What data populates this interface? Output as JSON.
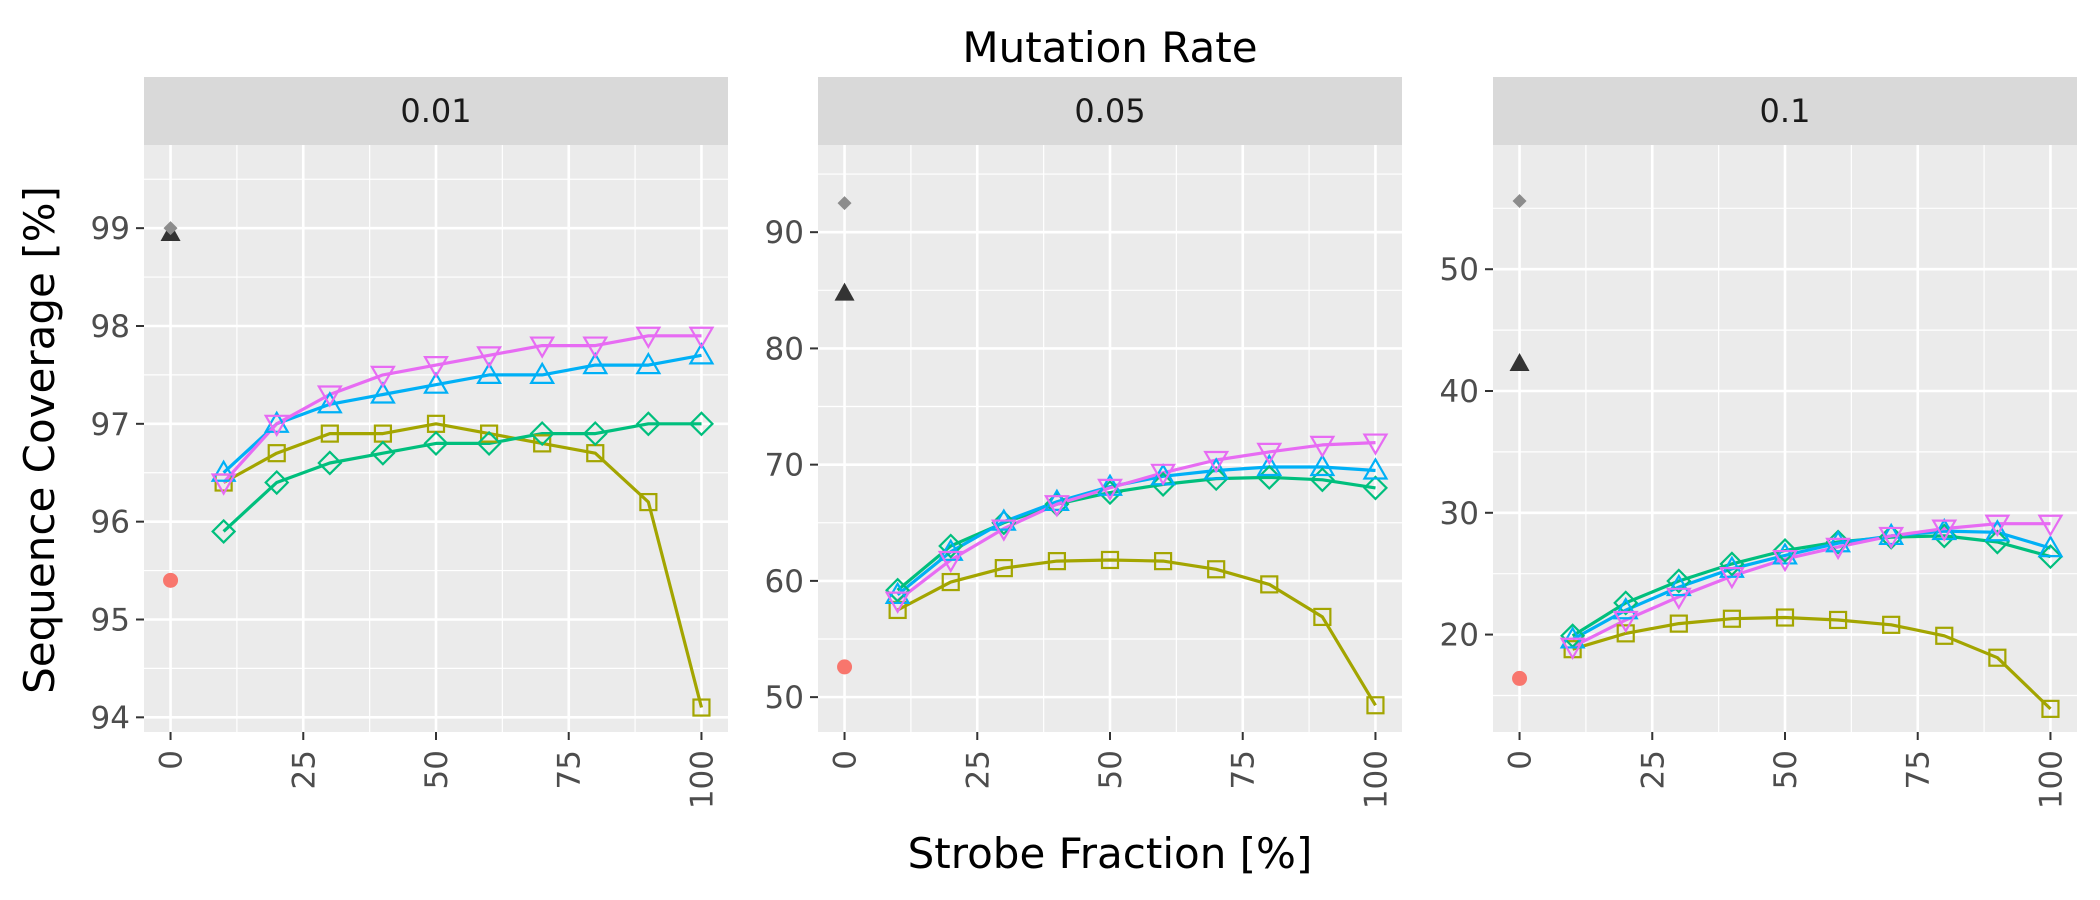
{
  "chart_data": {
    "type": "line",
    "title": "Mutation Rate",
    "xlabel": "Strobe Fraction [%]",
    "ylabel": "Sequence Coverage [%]",
    "x_ticks": [
      "0",
      "25",
      "50",
      "75",
      "100"
    ],
    "xlim": [
      -5,
      105
    ],
    "grid": true,
    "legend": "none",
    "colors": {
      "olive": "#A3A500",
      "green": "#00BF7D",
      "blue": "#00B0F6",
      "pink": "#E76BF3",
      "red_point": "#F8766D",
      "black_point": "#333333",
      "grey_point": "#8C8C8C"
    },
    "panels": [
      {
        "facet": "0.01",
        "ylim": [
          93.85,
          99.85
        ],
        "y_ticks": [
          94,
          95,
          96,
          97,
          98,
          99
        ],
        "x": [
          10,
          20,
          30,
          40,
          50,
          60,
          70,
          80,
          90,
          100
        ],
        "series": [
          {
            "color": "olive",
            "marker": "square",
            "values": [
              96.4,
              96.7,
              96.9,
              96.9,
              97.0,
              96.9,
              96.8,
              96.7,
              96.2,
              94.1
            ]
          },
          {
            "color": "green",
            "marker": "diamond",
            "values": [
              95.9,
              96.4,
              96.6,
              96.7,
              96.8,
              96.8,
              96.9,
              96.9,
              97.0,
              97.0
            ]
          },
          {
            "color": "blue",
            "marker": "triangle-up",
            "values": [
              96.5,
              97.0,
              97.2,
              97.3,
              97.4,
              97.5,
              97.5,
              97.6,
              97.6,
              97.7
            ]
          },
          {
            "color": "pink",
            "marker": "triangle-down",
            "values": [
              96.4,
              97.0,
              97.3,
              97.5,
              97.6,
              97.7,
              97.8,
              97.8,
              97.9,
              97.9
            ]
          }
        ],
        "points": [
          {
            "x": 0,
            "y": 95.4,
            "color": "red_point",
            "marker": "circle"
          },
          {
            "x": 0,
            "y": 98.95,
            "color": "black_point",
            "marker": "triangle-up"
          },
          {
            "x": 0,
            "y": 99.0,
            "color": "grey_point",
            "marker": "diamond-filled"
          }
        ]
      },
      {
        "facet": "0.05",
        "ylim": [
          47.0,
          97.5
        ],
        "y_ticks": [
          50,
          60,
          70,
          80,
          90
        ],
        "x": [
          10,
          20,
          30,
          40,
          50,
          60,
          70,
          80,
          90,
          100
        ],
        "series": [
          {
            "color": "olive",
            "marker": "square",
            "values": [
              57.5,
              59.9,
              61.1,
              61.7,
              61.8,
              61.7,
              61.0,
              59.7,
              56.9,
              49.3
            ]
          },
          {
            "color": "green",
            "marker": "diamond",
            "values": [
              59.2,
              63.0,
              65.0,
              66.6,
              67.6,
              68.3,
              68.8,
              68.9,
              68.7,
              68.0
            ]
          },
          {
            "color": "blue",
            "marker": "triangle-up",
            "values": [
              58.8,
              62.5,
              65.1,
              66.8,
              68.1,
              69.0,
              69.5,
              69.8,
              69.8,
              69.5
            ]
          },
          {
            "color": "pink",
            "marker": "triangle-down",
            "values": [
              58.3,
              61.8,
              64.5,
              66.6,
              68.0,
              69.3,
              70.4,
              71.1,
              71.7,
              71.9
            ]
          }
        ],
        "points": [
          {
            "x": 0,
            "y": 52.6,
            "color": "red_point",
            "marker": "circle"
          },
          {
            "x": 0,
            "y": 84.8,
            "color": "black_point",
            "marker": "triangle-up"
          },
          {
            "x": 0,
            "y": 92.5,
            "color": "grey_point",
            "marker": "diamond-filled"
          }
        ]
      },
      {
        "facet": "0.1",
        "ylim": [
          12.0,
          60.2
        ],
        "y_ticks": [
          20,
          30,
          40,
          50
        ],
        "x": [
          10,
          20,
          30,
          40,
          50,
          60,
          70,
          80,
          90,
          100
        ],
        "series": [
          {
            "color": "olive",
            "marker": "square",
            "values": [
              18.8,
              20.1,
              20.9,
              21.3,
              21.4,
              21.2,
              20.8,
              19.9,
              18.1,
              13.9
            ]
          },
          {
            "color": "green",
            "marker": "diamond",
            "values": [
              19.9,
              22.6,
              24.4,
              25.8,
              26.9,
              27.6,
              28.0,
              28.1,
              27.6,
              26.4
            ]
          },
          {
            "color": "blue",
            "marker": "triangle-up",
            "values": [
              19.6,
              22.0,
              23.9,
              25.4,
              26.5,
              27.5,
              28.1,
              28.5,
              28.4,
              27.1
            ]
          },
          {
            "color": "pink",
            "marker": "triangle-down",
            "values": [
              19.0,
              21.2,
              23.1,
              24.8,
              26.2,
              27.2,
              28.1,
              28.7,
              29.1,
              29.1
            ]
          }
        ],
        "points": [
          {
            "x": 0,
            "y": 16.4,
            "color": "red_point",
            "marker": "circle"
          },
          {
            "x": 0,
            "y": 42.3,
            "color": "black_point",
            "marker": "triangle-up"
          },
          {
            "x": 0,
            "y": 55.6,
            "color": "grey_point",
            "marker": "diamond-filled"
          }
        ]
      }
    ]
  }
}
